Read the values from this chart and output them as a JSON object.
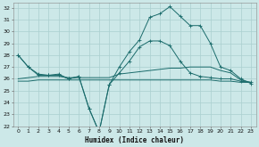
{
  "xlabel": "Humidex (Indice chaleur)",
  "xlim": [
    -0.5,
    23.5
  ],
  "ylim": [
    22,
    32.4
  ],
  "yticks": [
    22,
    23,
    24,
    25,
    26,
    27,
    28,
    29,
    30,
    31,
    32
  ],
  "xticks": [
    0,
    1,
    2,
    3,
    4,
    5,
    6,
    7,
    8,
    9,
    10,
    11,
    12,
    13,
    14,
    15,
    16,
    17,
    18,
    19,
    20,
    21,
    22,
    23
  ],
  "background_color": "#cce8e8",
  "grid_color": "#aacfcf",
  "line_color": "#1a6b6b",
  "line1_x": [
    0,
    1,
    2,
    3,
    4,
    5,
    6,
    7,
    8,
    9,
    10,
    11,
    12,
    13,
    14,
    15,
    16,
    17,
    18,
    19,
    20,
    21,
    22,
    23
  ],
  "line1_y": [
    28.0,
    27.0,
    26.3,
    26.3,
    26.3,
    26.0,
    26.2,
    23.5,
    21.5,
    25.5,
    26.5,
    27.5,
    28.7,
    29.2,
    29.2,
    28.8,
    27.5,
    26.5,
    26.2,
    26.1,
    26.0,
    26.0,
    25.8,
    25.7
  ],
  "line2_x": [
    0,
    1,
    2,
    3,
    4,
    5,
    6,
    7,
    8,
    9,
    10,
    11,
    12,
    13,
    14,
    15,
    16,
    17,
    18,
    19,
    20,
    21,
    22,
    23
  ],
  "line2_y": [
    28.0,
    27.0,
    26.4,
    26.3,
    26.4,
    26.0,
    26.2,
    23.5,
    21.5,
    25.5,
    27.0,
    28.3,
    29.3,
    31.2,
    31.5,
    32.1,
    31.3,
    30.5,
    30.5,
    29.0,
    27.0,
    26.7,
    26.0,
    25.6
  ],
  "line3_x": [
    0,
    1,
    2,
    3,
    4,
    5,
    6,
    7,
    8,
    9,
    10,
    11,
    12,
    13,
    14,
    15,
    16,
    17,
    18,
    19,
    20,
    21,
    22,
    23
  ],
  "line3_y": [
    26.0,
    26.1,
    26.2,
    26.2,
    26.2,
    26.1,
    26.1,
    26.1,
    26.1,
    26.1,
    26.4,
    26.5,
    26.6,
    26.7,
    26.8,
    26.9,
    26.9,
    27.0,
    27.0,
    27.0,
    26.7,
    26.5,
    25.9,
    25.7
  ],
  "line4_x": [
    0,
    1,
    2,
    3,
    4,
    5,
    6,
    7,
    8,
    9,
    10,
    11,
    12,
    13,
    14,
    15,
    16,
    17,
    18,
    19,
    20,
    21,
    22,
    23
  ],
  "line4_y": [
    25.8,
    25.8,
    25.9,
    25.9,
    25.9,
    25.9,
    25.9,
    25.9,
    25.9,
    25.9,
    25.9,
    25.9,
    25.9,
    25.9,
    25.9,
    25.9,
    25.9,
    25.9,
    25.9,
    25.9,
    25.8,
    25.8,
    25.7,
    25.7
  ]
}
